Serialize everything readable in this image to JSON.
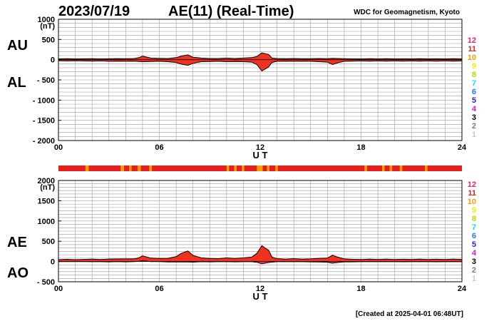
{
  "header": {
    "date": "2023/07/19",
    "title": "AE(11) (Real-Time)",
    "source": "WDC for Geomagnetism, Kyoto"
  },
  "footer": {
    "created": "[Created at 2025-04-01 06:48UT]"
  },
  "legend": {
    "entries": [
      {
        "label": "12",
        "color": "#e8247a"
      },
      {
        "label": "11",
        "color": "#e81e1e"
      },
      {
        "label": "10",
        "color": "#f5a000"
      },
      {
        "label": "9",
        "color": "#f0f000"
      },
      {
        "label": "8",
        "color": "#a6e600"
      },
      {
        "label": "7",
        "color": "#1ed7e6"
      },
      {
        "label": "6",
        "color": "#1e78ff"
      },
      {
        "label": "5",
        "color": "#2a1ec8"
      },
      {
        "label": "4",
        "color": "#c81ed7"
      },
      {
        "label": "3",
        "color": "#000000"
      },
      {
        "label": "2",
        "color": "#7d7d7d"
      },
      {
        "label": "1",
        "color": "#c8c8c8"
      }
    ]
  },
  "colors": {
    "fill_main": "#f0321e",
    "fill_low": "#f5a000",
    "line": "#000000",
    "grid": "#9e9e9e",
    "axis": "#000000"
  },
  "chart_data": [
    {
      "type": "area",
      "name": "AU/AL",
      "series_labels": [
        "AU",
        "AL"
      ],
      "unit": "(nT)",
      "xlabel": "U T",
      "xlim": [
        0,
        24
      ],
      "x_ticks": [
        "00",
        "06",
        "12",
        "18",
        "24"
      ],
      "x_tick_values": [
        0,
        6,
        12,
        18,
        24
      ],
      "ylim": [
        -2000,
        1000
      ],
      "y_ticks": [
        "1000",
        "500",
        "0",
        "- 500",
        "- 1000",
        "- 1500",
        "- 2000"
      ],
      "y_tick_values": [
        1000,
        500,
        0,
        -500,
        -1000,
        -1500,
        -2000
      ],
      "grid": true,
      "x": [
        0,
        0.5,
        1,
        1.5,
        2,
        2.5,
        3,
        3.5,
        4,
        4.5,
        4.8,
        5,
        5.5,
        6,
        6.5,
        7,
        7.3,
        7.7,
        8,
        8.5,
        9,
        9.5,
        10,
        10.5,
        11,
        11.5,
        11.8,
        12.1,
        12.3,
        12.5,
        12.7,
        13,
        13.5,
        14,
        14.5,
        15,
        15.5,
        16,
        16.3,
        16.6,
        17,
        17.5,
        18,
        18.5,
        19,
        19.5,
        20,
        20.5,
        21,
        21.5,
        22,
        22.5,
        23,
        23.5,
        24
      ],
      "series": [
        {
          "name": "AU",
          "values": [
            20,
            25,
            20,
            22,
            25,
            20,
            22,
            28,
            25,
            30,
            50,
            90,
            40,
            35,
            30,
            50,
            90,
            120,
            60,
            40,
            30,
            30,
            40,
            30,
            40,
            50,
            80,
            170,
            150,
            130,
            40,
            30,
            25,
            30,
            25,
            25,
            30,
            25,
            35,
            30,
            25,
            20,
            20,
            25,
            20,
            25,
            20,
            22,
            20,
            25,
            20,
            22,
            20,
            25,
            20
          ]
        },
        {
          "name": "AL",
          "values": [
            -25,
            -30,
            -25,
            -30,
            -35,
            -30,
            -40,
            -35,
            -40,
            -35,
            -45,
            -50,
            -45,
            -40,
            -50,
            -70,
            -110,
            -140,
            -90,
            -50,
            -45,
            -40,
            -50,
            -45,
            -50,
            -60,
            -120,
            -280,
            -230,
            -180,
            -70,
            -40,
            -35,
            -40,
            -35,
            -40,
            -50,
            -60,
            -120,
            -80,
            -40,
            -35,
            -30,
            -35,
            -30,
            -35,
            -30,
            -35,
            -30,
            -35,
            -30,
            -35,
            -30,
            -35,
            -30
          ]
        }
      ]
    },
    {
      "type": "area",
      "name": "AE/AO",
      "series_labels": [
        "AE",
        "AO"
      ],
      "unit": "(nT)",
      "xlabel": "U T",
      "xlim": [
        0,
        24
      ],
      "x_ticks": [
        "00",
        "06",
        "12",
        "18",
        "24"
      ],
      "x_tick_values": [
        0,
        6,
        12,
        18,
        24
      ],
      "ylim": [
        -500,
        2000
      ],
      "y_ticks": [
        "2000",
        "1500",
        "1000",
        "500",
        "0",
        "- 500"
      ],
      "y_tick_values": [
        2000,
        1500,
        1000,
        500,
        0,
        -500
      ],
      "grid": true,
      "x": [
        0,
        0.5,
        1,
        1.5,
        2,
        2.5,
        3,
        3.5,
        4,
        4.5,
        4.8,
        5,
        5.5,
        6,
        6.5,
        7,
        7.3,
        7.7,
        8,
        8.5,
        9,
        9.5,
        10,
        10.5,
        11,
        11.5,
        11.8,
        12.1,
        12.3,
        12.5,
        12.7,
        13,
        13.5,
        14,
        14.5,
        15,
        15.5,
        16,
        16.3,
        16.6,
        17,
        17.5,
        18,
        18.5,
        19,
        19.5,
        20,
        20.5,
        21,
        21.5,
        22,
        22.5,
        23,
        23.5,
        24
      ],
      "series": [
        {
          "name": "AE",
          "values": [
            45,
            55,
            45,
            52,
            60,
            50,
            62,
            63,
            65,
            65,
            95,
            140,
            85,
            75,
            80,
            120,
            200,
            260,
            150,
            90,
            75,
            70,
            90,
            75,
            90,
            110,
            200,
            390,
            330,
            280,
            110,
            70,
            60,
            70,
            60,
            65,
            80,
            85,
            155,
            110,
            65,
            55,
            50,
            60,
            50,
            60,
            50,
            57,
            50,
            60,
            50,
            57,
            50,
            60,
            50
          ]
        },
        {
          "name": "AO",
          "values": [
            -3,
            -3,
            -3,
            -4,
            -5,
            -5,
            -9,
            -4,
            -8,
            -3,
            3,
            20,
            -3,
            -3,
            -10,
            -10,
            -10,
            -10,
            -15,
            -5,
            -8,
            -5,
            -5,
            -8,
            -5,
            -5,
            -20,
            -55,
            -40,
            -25,
            -15,
            -5,
            -5,
            -5,
            -5,
            -8,
            -10,
            -18,
            -43,
            -25,
            -8,
            -8,
            -5,
            -5,
            -5,
            -5,
            -5,
            -7,
            -5,
            -5,
            -5,
            -7,
            -5,
            -5,
            -5
          ]
        }
      ]
    }
  ],
  "status_bar": {
    "base_color": "#e81e1e",
    "segments": [
      {
        "from": 1.6,
        "to": 1.8,
        "color": "#f5a000"
      },
      {
        "from": 3.7,
        "to": 3.9,
        "color": "#f5a000"
      },
      {
        "from": 4.2,
        "to": 4.35,
        "color": "#f5a000"
      },
      {
        "from": 4.7,
        "to": 4.9,
        "color": "#f5a000"
      },
      {
        "from": 5.4,
        "to": 5.55,
        "color": "#f5a000"
      },
      {
        "from": 10.0,
        "to": 10.15,
        "color": "#f5a000"
      },
      {
        "from": 10.45,
        "to": 10.6,
        "color": "#f5a000"
      },
      {
        "from": 10.9,
        "to": 11.05,
        "color": "#f5a000"
      },
      {
        "from": 11.8,
        "to": 12.15,
        "color": "#f5a000"
      },
      {
        "from": 12.4,
        "to": 12.55,
        "color": "#f5a000"
      },
      {
        "from": 12.9,
        "to": 13.05,
        "color": "#f5a000"
      },
      {
        "from": 18.2,
        "to": 18.35,
        "color": "#f5a000"
      },
      {
        "from": 19.25,
        "to": 19.4,
        "color": "#f5a000"
      },
      {
        "from": 19.7,
        "to": 19.85,
        "color": "#f5a000"
      },
      {
        "from": 20.3,
        "to": 20.45,
        "color": "#f5a000"
      },
      {
        "from": 21.8,
        "to": 21.95,
        "color": "#f5a000"
      }
    ]
  }
}
